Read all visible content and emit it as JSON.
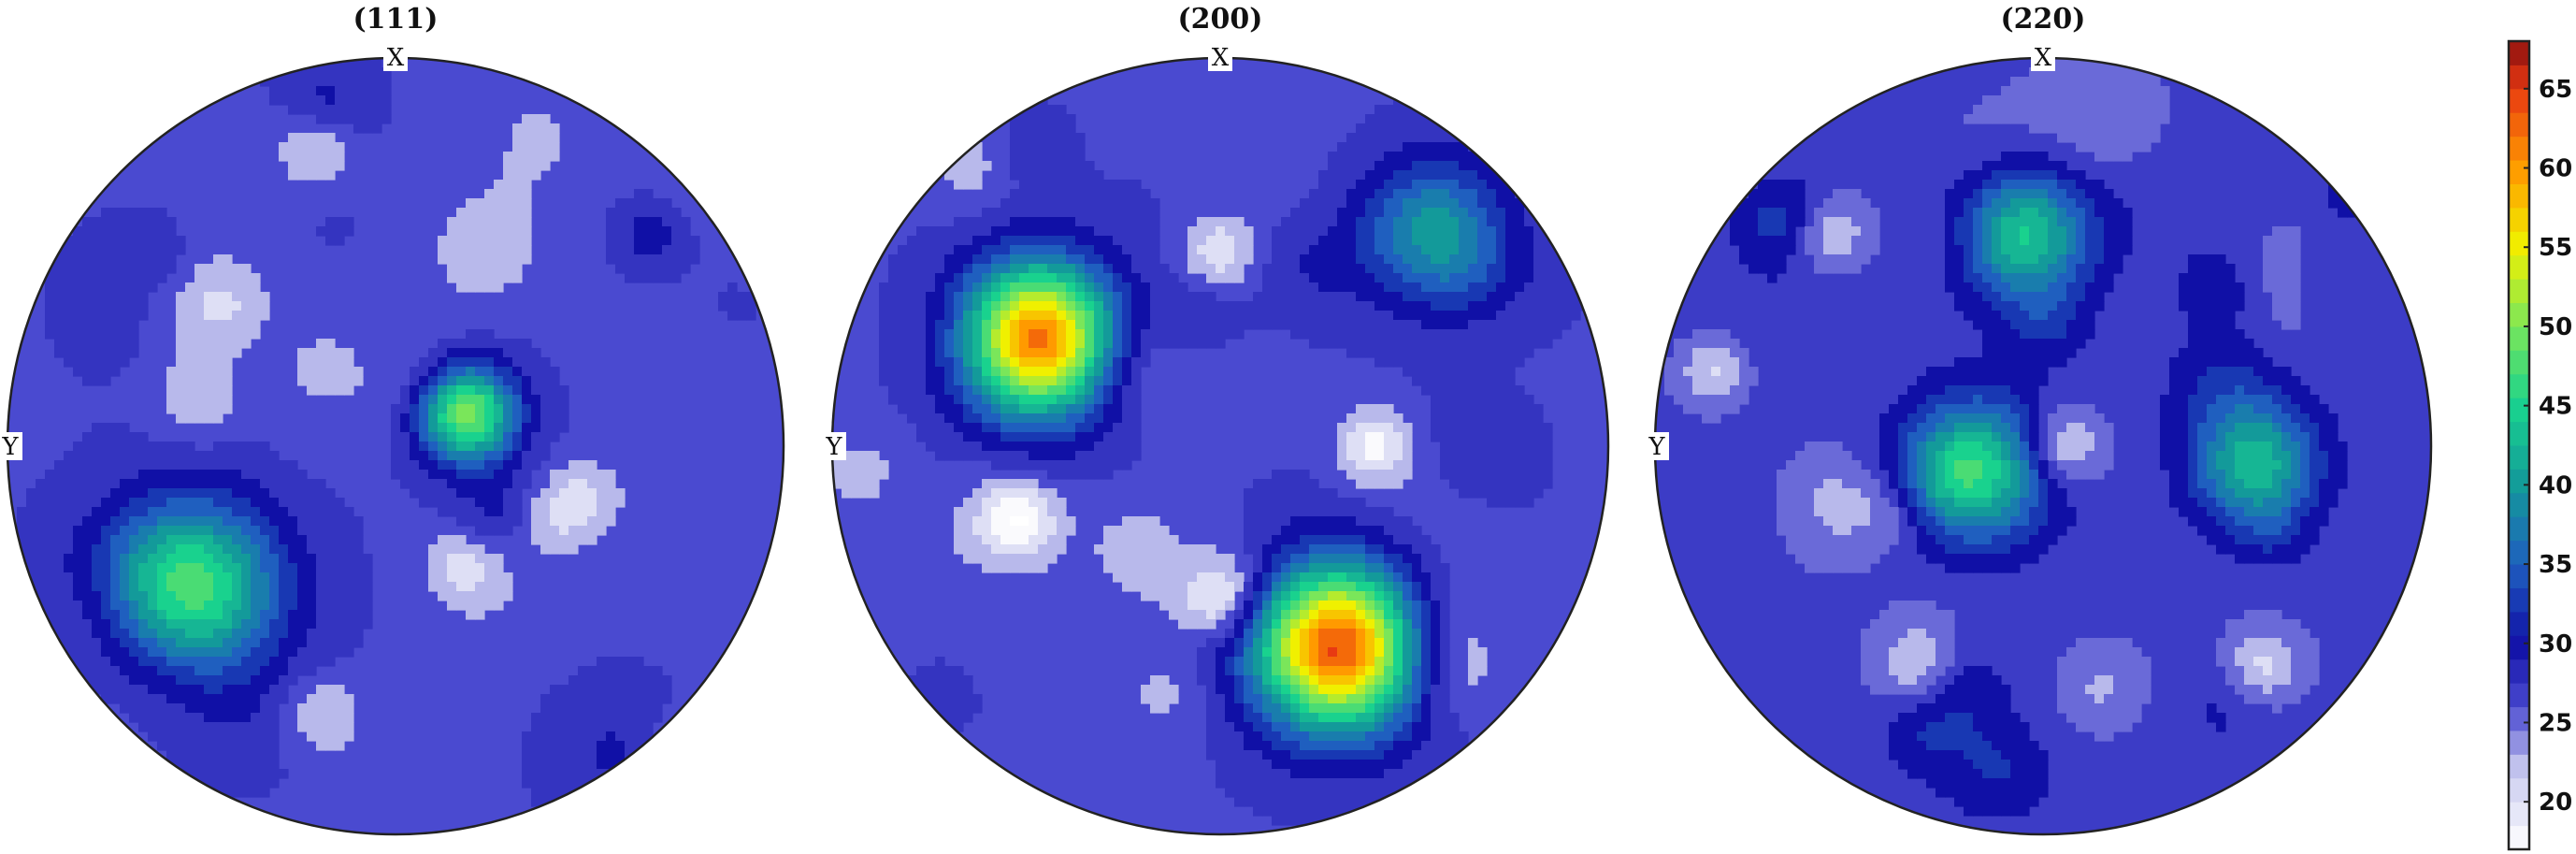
{
  "chart_data": [
    {
      "type": "heatmap",
      "subtype": "pole-figure",
      "title": "(111)",
      "x_label": "X",
      "y_label": "Y",
      "background_value": 26,
      "hotspots": [
        {
          "direction_deg": 25,
          "radius_frac": 0.2,
          "peak": 52,
          "spread": 0.09
        },
        {
          "direction_deg": 215,
          "radius_frac": 0.65,
          "peak": 49,
          "spread": 0.16
        },
        {
          "direction_deg": 150,
          "radius_frac": 0.75,
          "peak": 29,
          "spread": 0.12
        }
      ],
      "lows": [
        {
          "direction_deg": 105,
          "radius_frac": 0.8,
          "value": 20
        },
        {
          "direction_deg": 255,
          "radius_frac": 0.72,
          "value": 21
        },
        {
          "direction_deg": 345,
          "radius_frac": 0.5,
          "value": 21
        },
        {
          "direction_deg": 300,
          "radius_frac": 0.35,
          "value": 21
        }
      ]
    },
    {
      "type": "heatmap",
      "subtype": "pole-figure",
      "title": "(200)",
      "x_label": "X",
      "y_label": "Y",
      "background_value": 26,
      "hotspots": [
        {
          "direction_deg": 150,
          "radius_frac": 0.55,
          "peak": 62,
          "spread": 0.14
        },
        {
          "direction_deg": 300,
          "radius_frac": 0.6,
          "peak": 64,
          "spread": 0.15
        },
        {
          "direction_deg": 45,
          "radius_frac": 0.78,
          "peak": 40,
          "spread": 0.13
        }
      ],
      "lows": [
        {
          "direction_deg": 0,
          "radius_frac": 0.4,
          "value": 18
        },
        {
          "direction_deg": 200,
          "radius_frac": 0.55,
          "value": 18
        },
        {
          "direction_deg": 270,
          "radius_frac": 0.4,
          "value": 18
        },
        {
          "direction_deg": 90,
          "radius_frac": 0.5,
          "value": 18
        }
      ]
    },
    {
      "type": "heatmap",
      "subtype": "pole-figure",
      "title": "(220)",
      "x_label": "X",
      "y_label": "Y",
      "background_value": 27,
      "hotspots": [
        {
          "direction_deg": 95,
          "radius_frac": 0.55,
          "peak": 44,
          "spread": 0.12
        },
        {
          "direction_deg": 200,
          "radius_frac": 0.18,
          "peak": 45,
          "spread": 0.13
        },
        {
          "direction_deg": 355,
          "radius_frac": 0.55,
          "peak": 43,
          "spread": 0.11
        }
      ],
      "lows": [
        {
          "direction_deg": 135,
          "radius_frac": 0.78,
          "value": 20
        },
        {
          "direction_deg": 315,
          "radius_frac": 0.8,
          "value": 20
        },
        {
          "direction_deg": 0,
          "radius_frac": 0.05,
          "value": 19
        },
        {
          "direction_deg": 240,
          "radius_frac": 0.65,
          "value": 21
        }
      ]
    }
  ],
  "colorbar": {
    "min": 17,
    "max": 68,
    "ticks": [
      "20",
      "25",
      "30",
      "35",
      "40",
      "45",
      "50",
      "55",
      "60",
      "65"
    ],
    "tick_values": [
      20,
      25,
      30,
      35,
      40,
      45,
      50,
      55,
      60,
      65
    ],
    "colormap_stops": [
      {
        "v": 17,
        "c": "#ffffff"
      },
      {
        "v": 22,
        "c": "#c8c9ef"
      },
      {
        "v": 26,
        "c": "#4a4ad0"
      },
      {
        "v": 30,
        "c": "#1010a6"
      },
      {
        "v": 35,
        "c": "#1f5fbf"
      },
      {
        "v": 40,
        "c": "#139a9a"
      },
      {
        "v": 45,
        "c": "#19d28e"
      },
      {
        "v": 50,
        "c": "#7ae65a"
      },
      {
        "v": 55,
        "c": "#f0f000"
      },
      {
        "v": 60,
        "c": "#ff9a00"
      },
      {
        "v": 65,
        "c": "#e83a12"
      },
      {
        "v": 68,
        "c": "#8a0f0f"
      }
    ]
  }
}
